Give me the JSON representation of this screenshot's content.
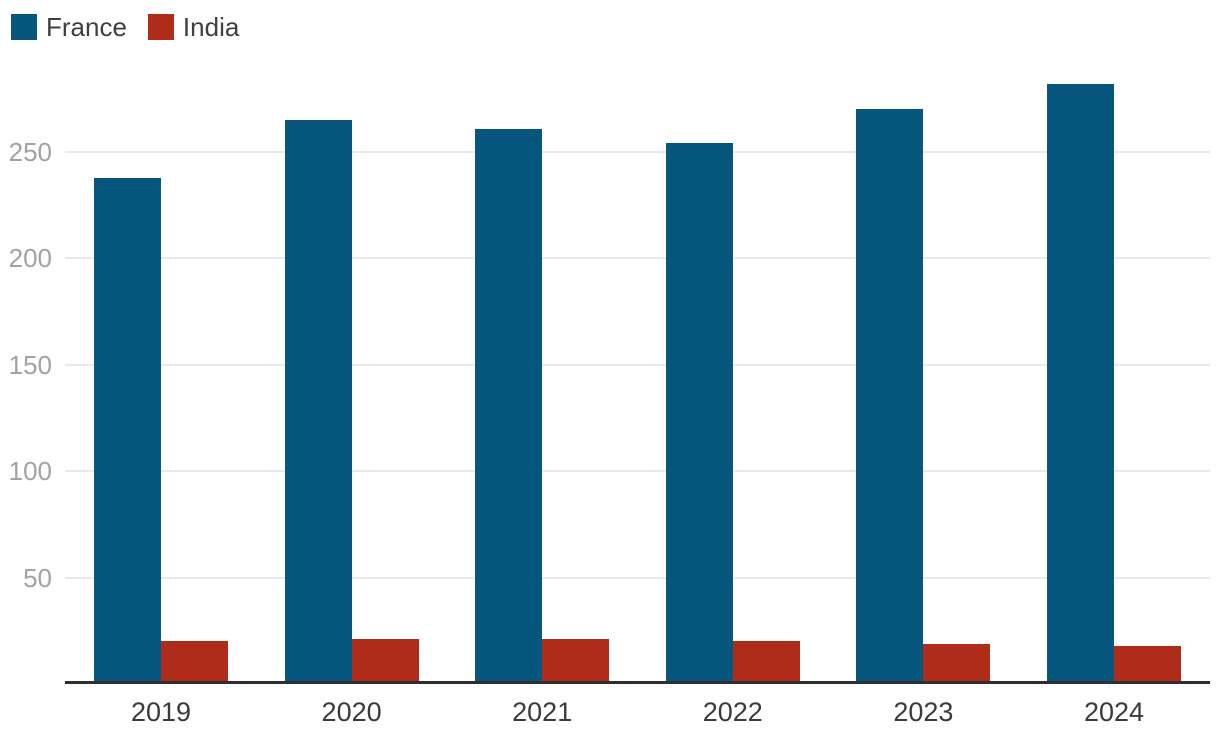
{
  "legend": {
    "items": [
      {
        "label": "France",
        "color": "#06567e"
      },
      {
        "label": "India",
        "color": "#b02c1a"
      }
    ]
  },
  "chart_data": {
    "type": "bar",
    "title": "",
    "xlabel": "",
    "ylabel": "",
    "categories": [
      "2019",
      "2020",
      "2021",
      "2022",
      "2023",
      "2024"
    ],
    "series": [
      {
        "name": "France",
        "color": "#06567e",
        "values": [
          238,
          265,
          261,
          254,
          270,
          282
        ]
      },
      {
        "name": "India",
        "color": "#b02c1a",
        "values": [
          20,
          21,
          21,
          20,
          19,
          18
        ]
      }
    ],
    "yticks": [
      50,
      100,
      150,
      200,
      250
    ],
    "ylim": [
      0,
      290
    ],
    "grid": "horizontal",
    "legend_position": "top-left",
    "axis_color": "#2f2f2f",
    "gridline_color": "#e8e8e8",
    "ytick_color": "#a2a2a2",
    "xtick_color": "#3a3a3a"
  }
}
